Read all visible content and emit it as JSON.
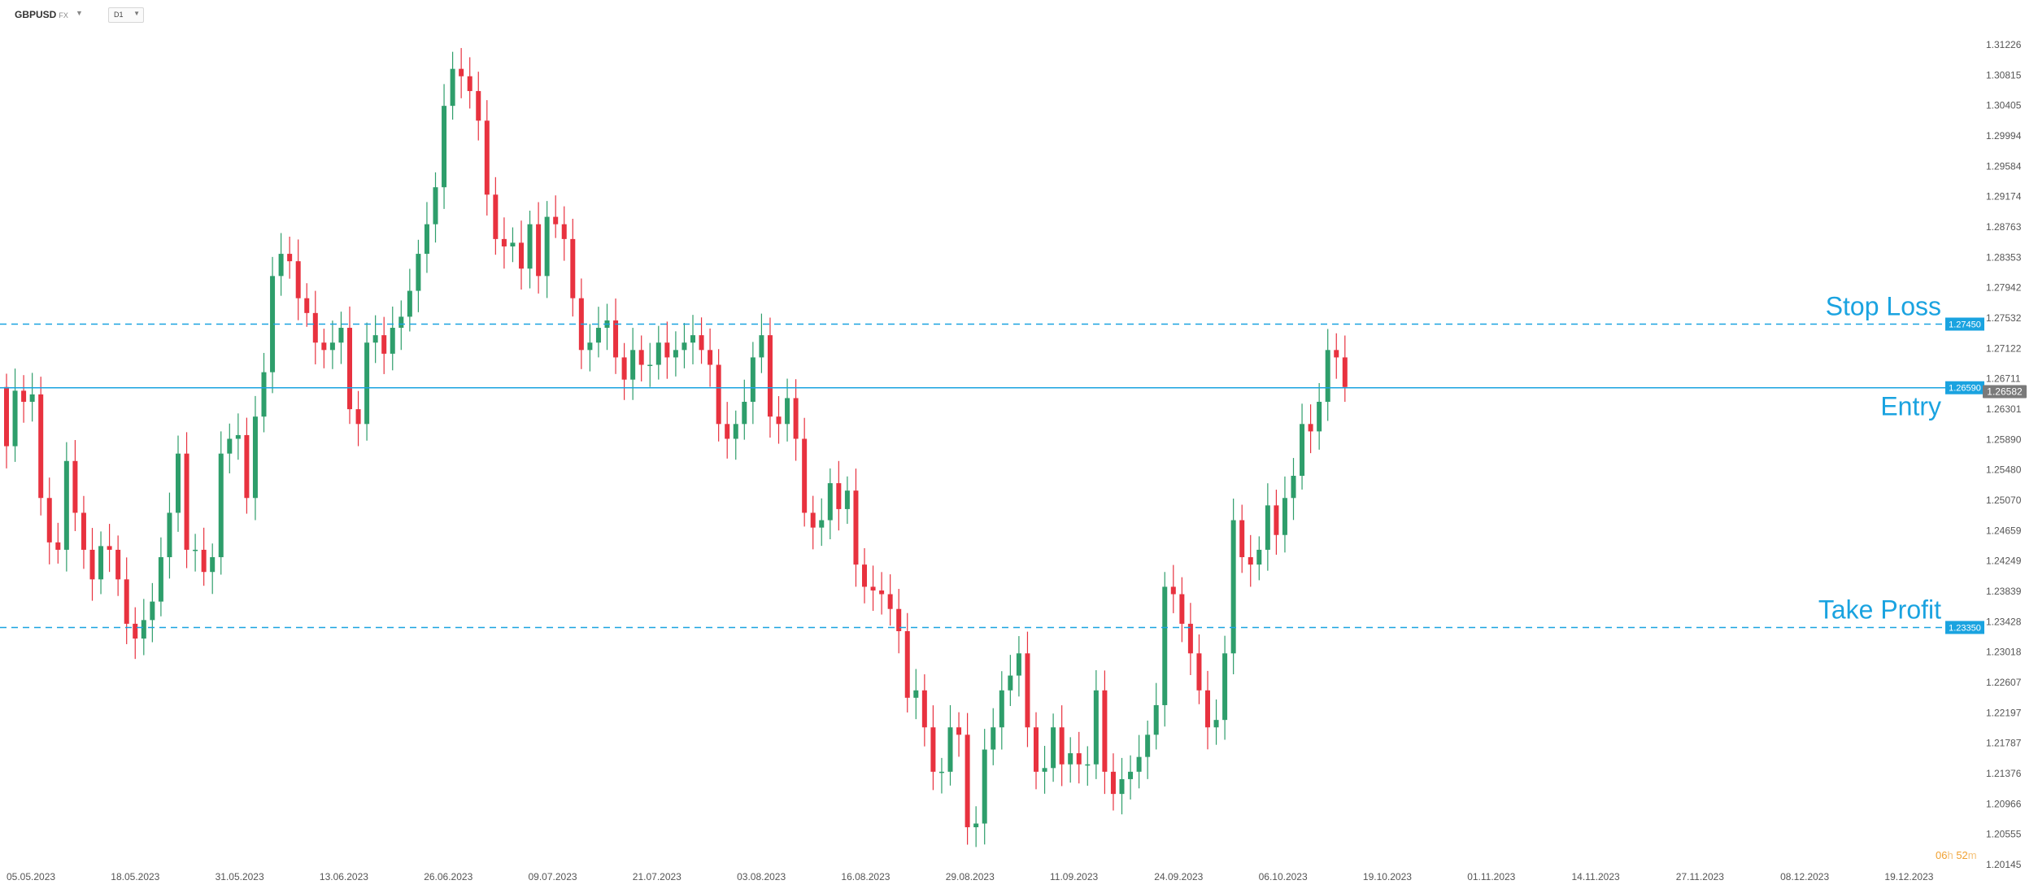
{
  "toolbar": {
    "symbol": "GBPUSD",
    "symbol_suffix": "FX",
    "timeframe": "D1"
  },
  "timer": {
    "hours": "06",
    "hours_unit": "h",
    "minutes": "52",
    "minutes_unit": "m"
  },
  "colors": {
    "bull": "#2e9e6b",
    "bear": "#e8323f",
    "level_line": "#1aa3e0",
    "label_bg": "#1aa3e0",
    "price_tag_bg": "#7a7a7a"
  },
  "chart_data": {
    "type": "candlestick",
    "y_axis": {
      "range": [
        1.2,
        1.315
      ],
      "ticks": [
        "1.31226",
        "1.30815",
        "1.30405",
        "1.29994",
        "1.29584",
        "1.29174",
        "1.28763",
        "1.28353",
        "1.27942",
        "1.27532",
        "1.27122",
        "1.26711",
        "1.26301",
        "1.25890",
        "1.25480",
        "1.25070",
        "1.24659",
        "1.24249",
        "1.23839",
        "1.23428",
        "1.23018",
        "1.22607",
        "1.22197",
        "1.21787",
        "1.21376",
        "1.20966",
        "1.20555",
        "1.20145"
      ]
    },
    "x_axis": {
      "labels": [
        "05.05.2023",
        "18.05.2023",
        "31.05.2023",
        "13.06.2023",
        "26.06.2023",
        "09.07.2023",
        "21.07.2023",
        "03.08.2023",
        "16.08.2023",
        "29.08.2023",
        "11.09.2023",
        "24.09.2023",
        "06.10.2023",
        "19.10.2023",
        "01.11.2023",
        "14.11.2023",
        "27.11.2023",
        "08.12.2023",
        "19.12.2023"
      ]
    },
    "levels": [
      {
        "name": "Stop Loss",
        "value": "1.27450"
      },
      {
        "name": "Entry",
        "value": "1.26590"
      },
      {
        "name": "Take Profit",
        "value": "1.23350"
      }
    ],
    "current_price": "1.26582",
    "closes": [
      1.258,
      1.2655,
      1.264,
      1.265,
      1.251,
      1.245,
      1.244,
      1.256,
      1.249,
      1.244,
      1.24,
      1.2445,
      1.244,
      1.24,
      1.234,
      1.232,
      1.2345,
      1.237,
      1.243,
      1.249,
      1.257,
      1.244,
      1.244,
      1.241,
      1.243,
      1.257,
      1.259,
      1.2595,
      1.251,
      1.262,
      1.268,
      1.281,
      1.284,
      1.283,
      1.278,
      1.276,
      1.272,
      1.271,
      1.272,
      1.274,
      1.263,
      1.261,
      1.272,
      1.273,
      1.2705,
      1.274,
      1.2755,
      1.279,
      1.284,
      1.288,
      1.293,
      1.304,
      1.309,
      1.308,
      1.306,
      1.302,
      1.292,
      1.286,
      1.285,
      1.2855,
      1.282,
      1.288,
      1.281,
      1.289,
      1.288,
      1.286,
      1.278,
      1.271,
      1.272,
      1.274,
      1.275,
      1.27,
      1.267,
      1.271,
      1.269,
      1.269,
      1.272,
      1.27,
      1.271,
      1.272,
      1.273,
      1.271,
      1.269,
      1.261,
      1.259,
      1.261,
      1.264,
      1.27,
      1.273,
      1.262,
      1.261,
      1.2645,
      1.259,
      1.249,
      1.247,
      1.248,
      1.253,
      1.2495,
      1.252,
      1.242,
      1.239,
      1.2385,
      1.238,
      1.236,
      1.233,
      1.224,
      1.225,
      1.22,
      1.214,
      1.214,
      1.22,
      1.219,
      1.2065,
      1.207,
      1.217,
      1.22,
      1.225,
      1.227,
      1.23,
      1.22,
      1.214,
      1.2145,
      1.22,
      1.215,
      1.2165,
      1.215,
      1.215,
      1.225,
      1.214,
      1.211,
      1.213,
      1.214,
      1.216,
      1.219,
      1.223,
      1.239,
      1.238,
      1.234,
      1.23,
      1.225,
      1.22,
      1.221,
      1.23,
      1.248,
      1.243,
      1.242,
      1.244,
      1.25,
      1.246,
      1.251,
      1.254,
      1.261,
      1.26,
      1.264,
      1.271,
      1.27,
      1.266
    ]
  }
}
